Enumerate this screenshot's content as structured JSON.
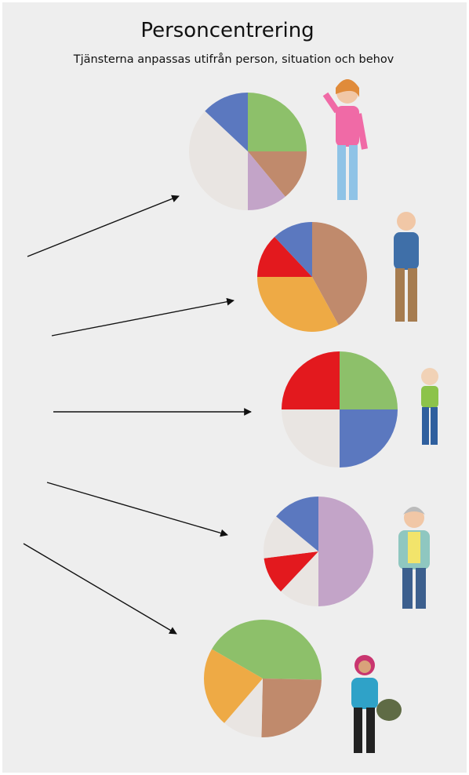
{
  "header": {
    "title": "Personcentrering",
    "subtitle": "Tjänsterna anpassas utifrån person, situation och behov"
  },
  "chart_data": [
    {
      "type": "pie",
      "values": [
        25,
        14,
        11,
        37,
        13
      ],
      "colors": [
        "#8dc06a",
        "#c08a6c",
        "#c3a4c8",
        "#e9e5e2",
        "#5b78bf"
      ]
    },
    {
      "type": "pie",
      "values": [
        42,
        33,
        13,
        12
      ],
      "colors": [
        "#c08a6c",
        "#eeaa45",
        "#e3191e",
        "#5b78bf"
      ]
    },
    {
      "type": "pie",
      "values": [
        25,
        25,
        25,
        25
      ],
      "colors": [
        "#8dc06a",
        "#5b78bf",
        "#e9e5e2",
        "#e3191e"
      ]
    },
    {
      "type": "pie",
      "values": [
        50,
        12,
        11,
        13,
        14
      ],
      "colors": [
        "#c3a4c8",
        "#e9e5e2",
        "#e3191e",
        "#e9e5e2",
        "#5b78bf"
      ]
    },
    {
      "type": "pie",
      "start_angle": -60,
      "values": [
        42,
        25,
        11,
        22
      ],
      "colors": [
        "#8dc06a",
        "#c08a6c",
        "#e9e5e2",
        "#eeaa45"
      ]
    }
  ]
}
